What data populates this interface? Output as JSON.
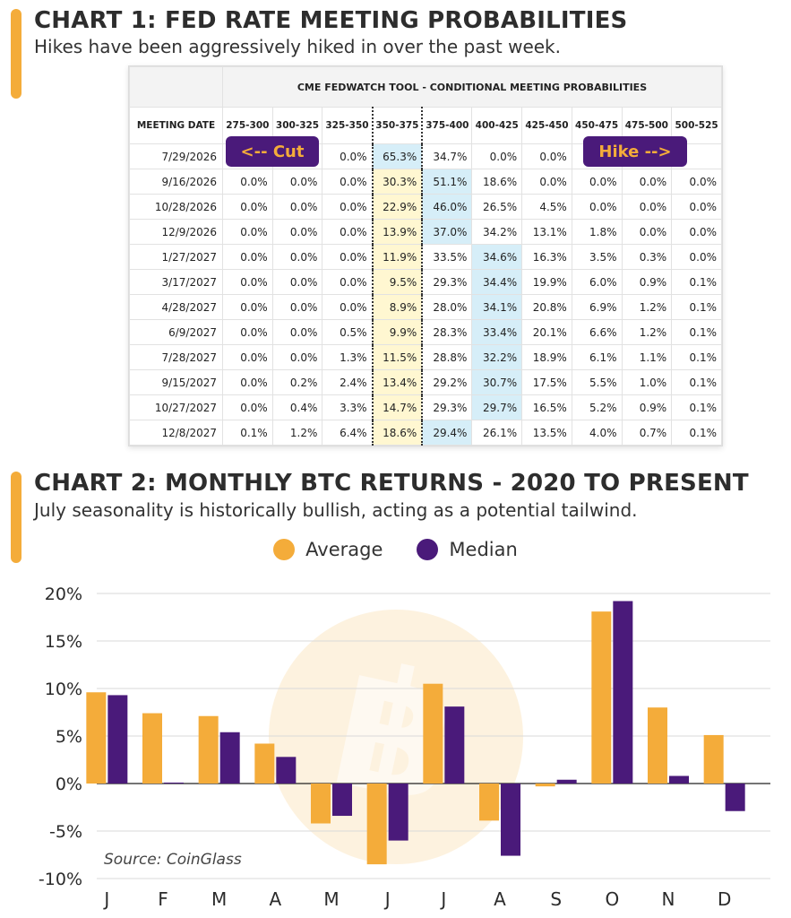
{
  "chart1": {
    "title": "CHART 1: FED RATE MEETING PROBABILITIES",
    "subtitle": "Hikes have been aggressively hiked in over the past week.",
    "table_title": "CME FEDWATCH TOOL - CONDITIONAL MEETING PROBABILITIES",
    "cut_label": "<-- Cut",
    "hike_label": "Hike -->",
    "colors": {
      "highlight_yellow": "#FFF7D1",
      "highlight_blue": "#D6EEF8",
      "tag_bg": "#4A1A7A",
      "tag_text": "#F4AC3A"
    }
  },
  "chart_data": [
    {
      "type": "table",
      "title": "CME FEDWATCH TOOL - CONDITIONAL MEETING PROBABILITIES",
      "columns": [
        "MEETING DATE",
        "275-300",
        "300-325",
        "325-350",
        "350-375",
        "375-400",
        "400-425",
        "425-450",
        "450-475",
        "475-500",
        "500-525"
      ],
      "rows": [
        [
          "7/29/2026",
          "",
          "",
          "0.0%",
          "65.3%",
          "34.7%",
          "0.0%",
          "0.0%",
          "",
          "",
          ""
        ],
        [
          "9/16/2026",
          "0.0%",
          "0.0%",
          "0.0%",
          "30.3%",
          "51.1%",
          "18.6%",
          "0.0%",
          "0.0%",
          "0.0%",
          "0.0%"
        ],
        [
          "10/28/2026",
          "0.0%",
          "0.0%",
          "0.0%",
          "22.9%",
          "46.0%",
          "26.5%",
          "4.5%",
          "0.0%",
          "0.0%",
          "0.0%"
        ],
        [
          "12/9/2026",
          "0.0%",
          "0.0%",
          "0.0%",
          "13.9%",
          "37.0%",
          "34.2%",
          "13.1%",
          "1.8%",
          "0.0%",
          "0.0%"
        ],
        [
          "1/27/2027",
          "0.0%",
          "0.0%",
          "0.0%",
          "11.9%",
          "33.5%",
          "34.6%",
          "16.3%",
          "3.5%",
          "0.3%",
          "0.0%"
        ],
        [
          "3/17/2027",
          "0.0%",
          "0.0%",
          "0.0%",
          "9.5%",
          "29.3%",
          "34.4%",
          "19.9%",
          "6.0%",
          "0.9%",
          "0.1%"
        ],
        [
          "4/28/2027",
          "0.0%",
          "0.0%",
          "0.0%",
          "8.9%",
          "28.0%",
          "34.1%",
          "20.8%",
          "6.9%",
          "1.2%",
          "0.1%"
        ],
        [
          "6/9/2027",
          "0.0%",
          "0.0%",
          "0.5%",
          "9.9%",
          "28.3%",
          "33.4%",
          "20.1%",
          "6.6%",
          "1.2%",
          "0.1%"
        ],
        [
          "7/28/2027",
          "0.0%",
          "0.0%",
          "1.3%",
          "11.5%",
          "28.8%",
          "32.2%",
          "18.9%",
          "6.1%",
          "1.1%",
          "0.1%"
        ],
        [
          "9/15/2027",
          "0.0%",
          "0.2%",
          "2.4%",
          "13.4%",
          "29.2%",
          "30.7%",
          "17.5%",
          "5.5%",
          "1.0%",
          "0.1%"
        ],
        [
          "10/27/2027",
          "0.0%",
          "0.4%",
          "3.3%",
          "14.7%",
          "29.3%",
          "29.7%",
          "16.5%",
          "5.2%",
          "0.9%",
          "0.1%"
        ],
        [
          "12/8/2027",
          "0.1%",
          "1.2%",
          "6.4%",
          "18.6%",
          "29.4%",
          "26.1%",
          "13.5%",
          "4.0%",
          "0.7%",
          "0.1%"
        ]
      ],
      "highlight_blue": [
        [
          0,
          4
        ],
        [
          1,
          5
        ],
        [
          2,
          5
        ],
        [
          3,
          5
        ],
        [
          4,
          6
        ],
        [
          5,
          6
        ],
        [
          6,
          6
        ],
        [
          7,
          6
        ],
        [
          8,
          6
        ],
        [
          9,
          6
        ],
        [
          10,
          6
        ],
        [
          11,
          5
        ]
      ]
    },
    {
      "type": "bar",
      "title": "CHART 2: MONTHLY BTC RETURNS - 2020 TO PRESENT",
      "subtitle": "July seasonality is historically bullish, acting as a potential tailwind.",
      "categories": [
        "J",
        "F",
        "M",
        "A",
        "M",
        "J",
        "J",
        "A",
        "S",
        "O",
        "N",
        "D"
      ],
      "series": [
        {
          "name": "Average",
          "color": "#F4AC3A",
          "values": [
            9.6,
            7.4,
            7.1,
            4.2,
            -4.2,
            -8.5,
            10.5,
            -3.9,
            -0.3,
            18.1,
            8.0,
            5.1
          ]
        },
        {
          "name": "Median",
          "color": "#4A1A7A",
          "values": [
            9.3,
            0.1,
            5.4,
            2.8,
            -3.4,
            -6.0,
            8.1,
            -7.6,
            0.4,
            19.2,
            0.8,
            -2.9
          ]
        }
      ],
      "ylim": [
        -10,
        20
      ],
      "yticks": [
        "-10%",
        "-5%",
        "0%",
        "5%",
        "10%",
        "15%",
        "20%"
      ],
      "ytick_values": [
        -10,
        -5,
        0,
        5,
        10,
        15,
        20
      ],
      "legend": "top-center",
      "grid": true,
      "source": "Source: CoinGlass"
    }
  ]
}
